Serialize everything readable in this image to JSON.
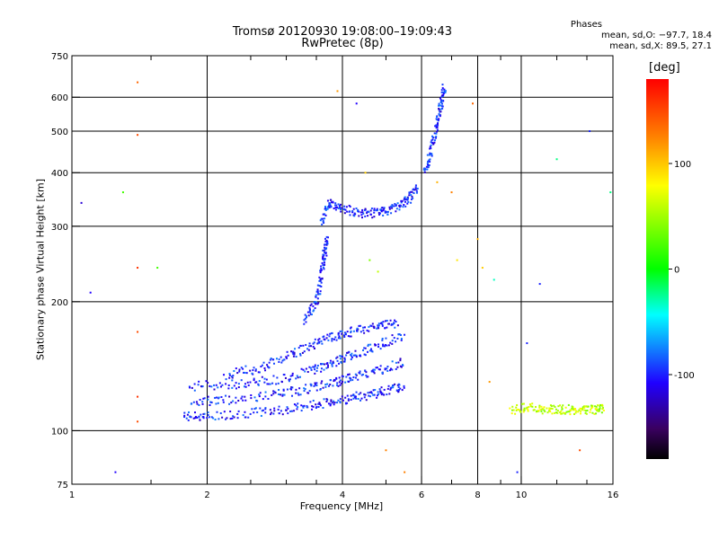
{
  "chart_data": {
    "type": "scatter",
    "title": "Tromsø 20120930 19:08:00–19:09:43",
    "subtitle": "RwPretec (8p)",
    "stats_title": "Phases",
    "stats_line1": "mean, sd,O: −97.7, 18.4",
    "stats_line2": "mean, sd,X:  89.5, 27.1",
    "xlabel": "Frequency [MHz]",
    "ylabel": "Stationary phase Virtual Height [km]",
    "x_scale": "log",
    "y_scale": "log",
    "xlim": [
      1,
      16
    ],
    "ylim": [
      75,
      750
    ],
    "x_ticks": [
      1,
      2,
      4,
      6,
      8,
      10,
      16
    ],
    "x_tick_labels": [
      "1",
      "2",
      "4",
      "6",
      "8",
      "10",
      "16"
    ],
    "x_gridlines": [
      2,
      4,
      6,
      8,
      10
    ],
    "y_ticks": [
      75,
      100,
      200,
      300,
      400,
      500,
      600,
      750
    ],
    "y_tick_labels": [
      "75",
      "100",
      "200",
      "300",
      "400",
      "500",
      "600",
      "750"
    ],
    "y_gridlines": [
      100,
      200,
      300,
      400,
      500,
      600
    ],
    "grid": true,
    "colorbar": {
      "title": "[deg]",
      "range": [
        -180,
        180
      ],
      "ticks": [
        100,
        0,
        -100
      ],
      "tick_labels": [
        "100",
        "0",
        "-100"
      ]
    },
    "traces": [
      {
        "name": "",
        "phase": -100,
        "points": [
          [
            1.78,
            108
          ],
          [
            2.0,
            108
          ],
          [
            2.5,
            110
          ],
          [
            3.0,
            112
          ],
          [
            3.5,
            115
          ],
          [
            4.0,
            118
          ],
          [
            4.5,
            121
          ],
          [
            5.0,
            124
          ],
          [
            5.5,
            127
          ]
        ]
      },
      {
        "name": "",
        "phase": -100,
        "points": [
          [
            1.85,
            117
          ],
          [
            2.2,
            118
          ],
          [
            2.8,
            121
          ],
          [
            3.3,
            125
          ],
          [
            3.8,
            129
          ],
          [
            4.2,
            133
          ],
          [
            4.8,
            138
          ],
          [
            5.5,
            145
          ]
        ]
      },
      {
        "name": "",
        "phase": -100,
        "points": [
          [
            1.82,
            127
          ],
          [
            2.3,
            128
          ],
          [
            2.8,
            131
          ],
          [
            3.4,
            138
          ],
          [
            3.8,
            144
          ],
          [
            4.2,
            150
          ],
          [
            4.8,
            158
          ],
          [
            5.5,
            168
          ]
        ]
      },
      {
        "name": "",
        "phase": -100,
        "points": [
          [
            2.2,
            135
          ],
          [
            2.6,
            140
          ],
          [
            3.0,
            148
          ],
          [
            3.4,
            158
          ],
          [
            3.8,
            165
          ],
          [
            4.2,
            170
          ],
          [
            4.8,
            175
          ],
          [
            5.3,
            178
          ]
        ]
      },
      {
        "name": "",
        "phase": -100,
        "points": [
          [
            3.3,
            180
          ],
          [
            3.5,
            200
          ],
          [
            3.6,
            230
          ],
          [
            3.65,
            260
          ],
          [
            3.7,
            280
          ]
        ]
      },
      {
        "name": "",
        "phase": -100,
        "points": [
          [
            3.6,
            305
          ],
          [
            3.75,
            340
          ],
          [
            4.0,
            330
          ],
          [
            4.4,
            322
          ],
          [
            4.8,
            322
          ],
          [
            5.2,
            330
          ],
          [
            5.6,
            345
          ],
          [
            5.85,
            370
          ]
        ]
      },
      {
        "name": "",
        "phase": -100,
        "points": [
          [
            6.1,
            400
          ],
          [
            6.3,
            450
          ],
          [
            6.5,
            520
          ],
          [
            6.65,
            580
          ],
          [
            6.75,
            640
          ]
        ]
      },
      {
        "name": "",
        "phase": 60,
        "points": [
          [
            9.5,
            112
          ],
          [
            10.5,
            113
          ],
          [
            11.5,
            112
          ],
          [
            12.5,
            112
          ],
          [
            13.5,
            112
          ],
          [
            14.5,
            112
          ],
          [
            15.3,
            112
          ]
        ]
      }
    ],
    "scatter_points": [
      {
        "x": 1.4,
        "y": 650,
        "phase": 140
      },
      {
        "x": 1.4,
        "y": 490,
        "phase": 150
      },
      {
        "x": 1.4,
        "y": 240,
        "phase": 160
      },
      {
        "x": 1.4,
        "y": 170,
        "phase": 150
      },
      {
        "x": 1.4,
        "y": 120,
        "phase": 160
      },
      {
        "x": 1.4,
        "y": 105,
        "phase": 150
      },
      {
        "x": 1.05,
        "y": 340,
        "phase": -120
      },
      {
        "x": 1.1,
        "y": 210,
        "phase": -110
      },
      {
        "x": 1.25,
        "y": 80,
        "phase": -110
      },
      {
        "x": 1.3,
        "y": 360,
        "phase": 20
      },
      {
        "x": 1.55,
        "y": 240,
        "phase": 20
      },
      {
        "x": 3.9,
        "y": 620,
        "phase": 120
      },
      {
        "x": 4.3,
        "y": 580,
        "phase": -110
      },
      {
        "x": 4.5,
        "y": 400,
        "phase": 100
      },
      {
        "x": 4.6,
        "y": 250,
        "phase": 40
      },
      {
        "x": 4.8,
        "y": 235,
        "phase": 60
      },
      {
        "x": 5.0,
        "y": 90,
        "phase": 130
      },
      {
        "x": 5.5,
        "y": 80,
        "phase": 130
      },
      {
        "x": 6.5,
        "y": 380,
        "phase": 110
      },
      {
        "x": 7.0,
        "y": 360,
        "phase": 130
      },
      {
        "x": 7.2,
        "y": 250,
        "phase": 90
      },
      {
        "x": 7.8,
        "y": 580,
        "phase": 140
      },
      {
        "x": 8.0,
        "y": 280,
        "phase": 110
      },
      {
        "x": 8.2,
        "y": 240,
        "phase": 100
      },
      {
        "x": 8.7,
        "y": 225,
        "phase": -30
      },
      {
        "x": 8.5,
        "y": 130,
        "phase": 120
      },
      {
        "x": 9.8,
        "y": 80,
        "phase": -100
      },
      {
        "x": 11.0,
        "y": 220,
        "phase": -100
      },
      {
        "x": 12.0,
        "y": 430,
        "phase": -20
      },
      {
        "x": 13.5,
        "y": 90,
        "phase": 150
      },
      {
        "x": 14.2,
        "y": 500,
        "phase": -100
      },
      {
        "x": 15.8,
        "y": 360,
        "phase": -20
      },
      {
        "x": 10.3,
        "y": 160,
        "phase": -100
      }
    ]
  }
}
